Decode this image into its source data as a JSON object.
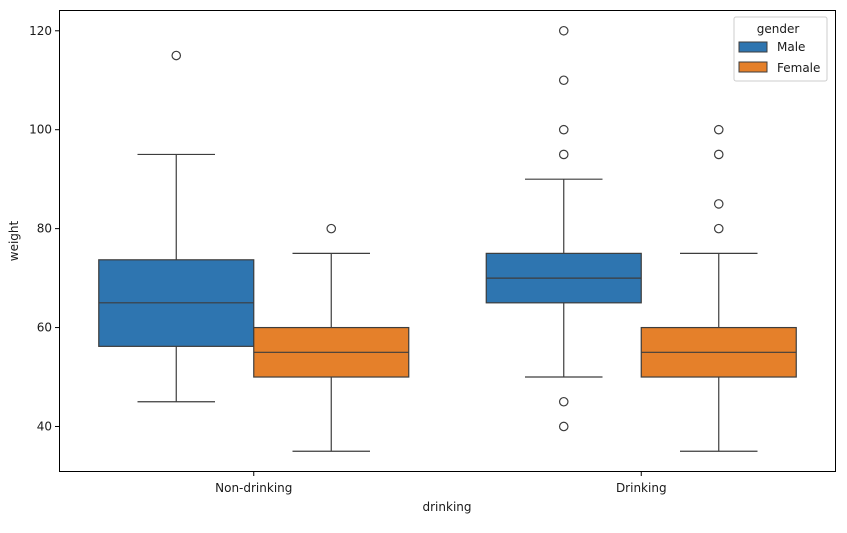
{
  "chart_data": {
    "type": "boxplot",
    "title": "",
    "xlabel": "drinking",
    "ylabel": "weight",
    "categories": [
      "Non-drinking",
      "Drinking"
    ],
    "ylim": [
      31,
      124
    ],
    "yticks": [
      40,
      60,
      80,
      100,
      120
    ],
    "legend": {
      "title": "gender",
      "position": "top-right"
    },
    "series": [
      {
        "name": "Male",
        "color": "#2e75b0",
        "boxes": [
          {
            "category": "Non-drinking",
            "whisker_low": 45,
            "q1": 56.2,
            "median": 65,
            "q3": 73.7,
            "whisker_high": 95,
            "outliers": [
              115
            ]
          },
          {
            "category": "Drinking",
            "whisker_low": 50,
            "q1": 65,
            "median": 70,
            "q3": 75,
            "whisker_high": 90,
            "outliers": [
              120,
              110,
              100,
              95,
              45,
              40
            ]
          }
        ]
      },
      {
        "name": "Female",
        "color": "#e5802a",
        "boxes": [
          {
            "category": "Non-drinking",
            "whisker_low": 35,
            "q1": 50,
            "median": 55,
            "q3": 60,
            "whisker_high": 75,
            "outliers": [
              80
            ]
          },
          {
            "category": "Drinking",
            "whisker_low": 35,
            "q1": 50,
            "median": 55,
            "q3": 60,
            "whisker_high": 75,
            "outliers": [
              100,
              95,
              85,
              80
            ]
          }
        ]
      }
    ]
  }
}
